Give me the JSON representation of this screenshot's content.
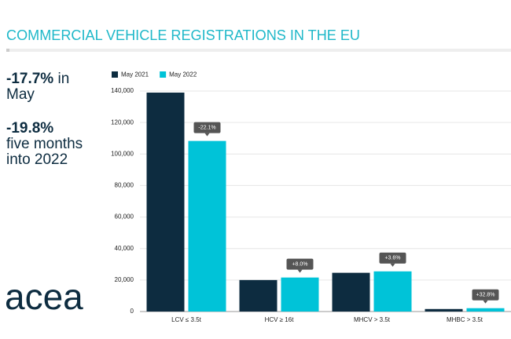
{
  "header": {
    "title": "COMMERCIAL VEHICLE REGISTRATIONS IN THE EU"
  },
  "highlights": [
    {
      "value": "-17.7%",
      "text": "in May"
    },
    {
      "value": "-19.8%",
      "text": "five months into 2022"
    }
  ],
  "logo": "acea",
  "chart_data": {
    "type": "bar",
    "categories": [
      "LCV ≤ 3.5t",
      "HCV ≥ 16t",
      "MHCV > 3.5t",
      "MHBC > 3.5t"
    ],
    "series": [
      {
        "name": "May 2021",
        "color": "#0d2c40",
        "values": [
          139000,
          20000,
          24600,
          1600
        ]
      },
      {
        "name": "May 2022",
        "color": "#00c3d8",
        "values": [
          108300,
          21600,
          25500,
          2125
        ]
      }
    ],
    "annotations": [
      "-22.1%",
      "+8.0%",
      "+3.6%",
      "+32.8%"
    ],
    "ylim": [
      0,
      140000
    ],
    "yticks": [
      0,
      {
        "value": 20000,
        "label": "20,000"
      },
      {
        "value": 40000,
        "label": "40,000"
      },
      {
        "value": 60000,
        "label": "60,000"
      },
      {
        "value": 80000,
        "label": "80,000"
      },
      {
        "value": 100000,
        "label": "100,000"
      },
      {
        "value": 120000,
        "label": "120,000"
      },
      {
        "value": 140000,
        "label": "140,000"
      }
    ],
    "grid": true,
    "legend": "top-left"
  }
}
